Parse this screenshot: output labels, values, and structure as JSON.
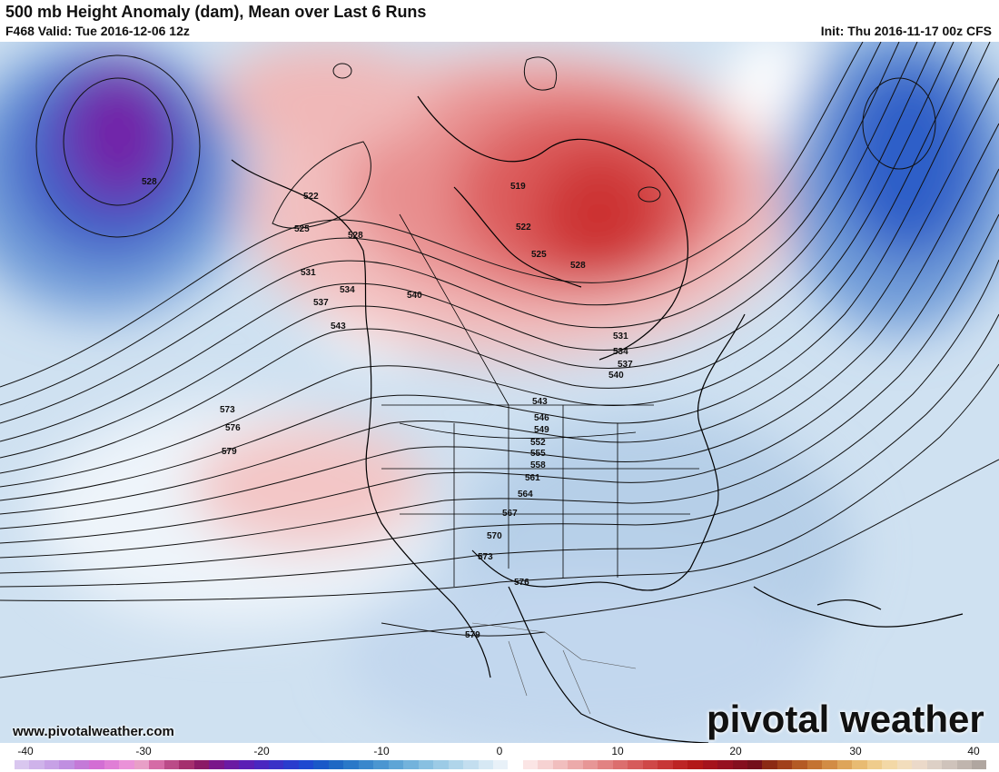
{
  "header": {
    "title": "500 mb Height Anomaly (dam), Mean over Last 6 Runs",
    "valid": "F468 Valid: Tue 2016-12-06 12z",
    "init": "Init: Thu 2016-11-17 00z CFS"
  },
  "footer": {
    "website": "www.pivotalweather.com",
    "brand": "pivotal weather"
  },
  "colorbar": {
    "ticks": [
      "-40",
      "-30",
      "-20",
      "-10",
      "0",
      "10",
      "20",
      "30",
      "40"
    ],
    "colors": [
      "#d9c7ef",
      "#cfb3ea",
      "#c7a1e6",
      "#c08fe1",
      "#c47ad8",
      "#d36ed4",
      "#e07ed6",
      "#ea92d8",
      "#e89fc7",
      "#d56ba6",
      "#bb4b88",
      "#a52f6e",
      "#8b1a66",
      "#7a168a",
      "#6b1aa3",
      "#5b1fb5",
      "#4a27c0",
      "#3a31c7",
      "#2a3ccd",
      "#1e49d0",
      "#1a58c8",
      "#1f68c4",
      "#2a78c8",
      "#3a87cc",
      "#4b96d1",
      "#5ea5d6",
      "#73b3dc",
      "#88c0e1",
      "#9ccbe6",
      "#b0d5ea",
      "#c3deef",
      "#d6e8f4",
      "#e8f1f8",
      "#ffffff",
      "#fbe5e5",
      "#f6d2d2",
      "#f1bebe",
      "#ecaaaa",
      "#e79696",
      "#e28282",
      "#dc6e6e",
      "#d65b5b",
      "#cf4848",
      "#c73636",
      "#bd2424",
      "#b31818",
      "#a5131c",
      "#961020",
      "#850f1e",
      "#740f1a",
      "#8c2a14",
      "#a1401a",
      "#b45a24",
      "#c47332",
      "#d28c45",
      "#de a55a",
      "#e8bb72",
      "#efcc8c",
      "#f3d8a6",
      "#f2ddbc",
      "#ebd9c9",
      "#ddd0c6",
      "#cfc3bb",
      "#c0b5ae",
      "#b0a6a0"
    ]
  },
  "map": {
    "contour_labels": [
      "528",
      "522",
      "525",
      "528",
      "531",
      "534",
      "537",
      "543",
      "540",
      "519",
      "522",
      "525",
      "528",
      "531",
      "534",
      "537",
      "540",
      "543",
      "546",
      "549",
      "552",
      "555",
      "558",
      "561",
      "564",
      "567",
      "570",
      "573",
      "576",
      "579",
      "573",
      "576",
      "579"
    ]
  }
}
